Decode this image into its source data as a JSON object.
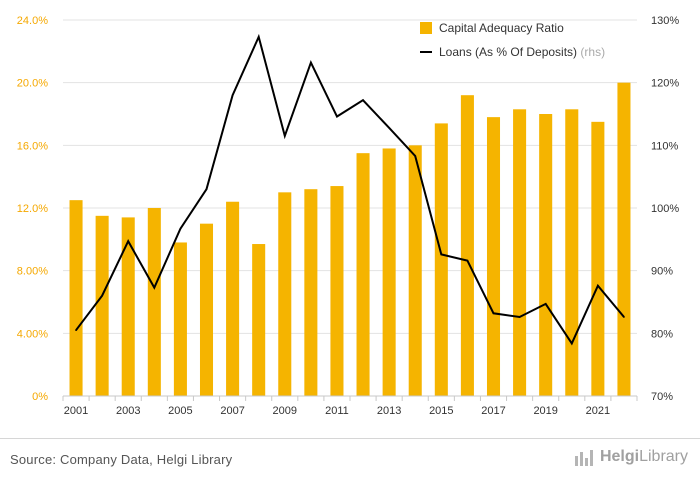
{
  "chart_data": {
    "type": "bar+line",
    "categories": [
      "2001",
      "2002",
      "2003",
      "2004",
      "2005",
      "2006",
      "2007",
      "2008",
      "2009",
      "2010",
      "2011",
      "2012",
      "2013",
      "2014",
      "2015",
      "2016",
      "2017",
      "2018",
      "2019",
      "2020",
      "2021",
      "2022"
    ],
    "x_tick_labels": [
      "2001",
      "2003",
      "2005",
      "2007",
      "2009",
      "2011",
      "2013",
      "2015",
      "2017",
      "2019",
      "2021"
    ],
    "series": [
      {
        "name": "Capital Adequacy Ratio",
        "type": "bar",
        "axis": "left",
        "color": "#f5b400",
        "values": [
          12.5,
          11.5,
          11.4,
          12.0,
          9.8,
          11.0,
          12.4,
          9.7,
          13.0,
          13.2,
          13.4,
          15.5,
          15.8,
          16.0,
          17.4,
          19.2,
          17.8,
          18.3,
          18.0,
          18.3,
          17.5,
          20.0
        ]
      },
      {
        "name": "Loans (As % Of Deposits)",
        "legend_suffix": "(rhs)",
        "type": "line",
        "axis": "right",
        "color": "#000000",
        "values": [
          80.5,
          86.0,
          94.7,
          87.3,
          96.7,
          103.0,
          118.0,
          127.3,
          111.5,
          123.2,
          114.6,
          117.2,
          112.8,
          108.3,
          92.6,
          91.6,
          83.2,
          82.6,
          84.7,
          78.4,
          87.6,
          82.6
        ]
      }
    ],
    "y_left": {
      "min": 0,
      "max": 24,
      "ticks": [
        0,
        4,
        8,
        12,
        16,
        20,
        24
      ],
      "tick_labels": [
        "0%",
        "4.00%",
        "8.00%",
        "12.0%",
        "16.0%",
        "20.0%",
        "24.0%"
      ],
      "color": "#f5a800"
    },
    "y_right": {
      "min": 70,
      "max": 130,
      "ticks": [
        70,
        80,
        90,
        100,
        110,
        120,
        130
      ],
      "tick_labels": [
        "70%",
        "80%",
        "90%",
        "100%",
        "110%",
        "120%",
        "130%"
      ]
    },
    "grid": true,
    "legend_position": "top-right"
  },
  "footer": {
    "source": "Source: Company Data, Helgi Library",
    "brand_main": "Helgi",
    "brand_sub": "Library"
  }
}
